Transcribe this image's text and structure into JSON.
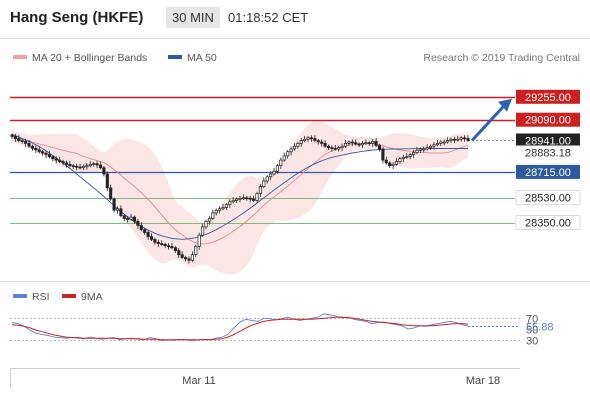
{
  "header": {
    "title": "Hang Seng (HKFE)",
    "interval": "30 MIN",
    "time": "01:18:52 CET"
  },
  "legend": {
    "items": [
      {
        "label": "MA 20 + Bollinger Bands",
        "color": "#f08080"
      },
      {
        "label": "MA 50",
        "color": "#2c5aa0"
      }
    ],
    "credit": "Research © 2019 Trading Central"
  },
  "rsi_legend": {
    "items": [
      {
        "label": "RSI",
        "color": "#5b7fd4"
      },
      {
        "label": "9MA",
        "color": "#cc2222"
      }
    ]
  },
  "colors": {
    "resistance": "#cc1f1f",
    "pivot": "#2c5aa0",
    "support": "#4caf50",
    "candle_up": "#ffffff",
    "candle_down": "#222222",
    "bollinger_fill": "#fbdede",
    "arrow": "#2c62b4"
  },
  "chart_data": [
    {
      "type": "candlestick",
      "ylim": [
        28010,
        29390
      ],
      "x_ticks": [
        "Mar 11",
        "Mar 18"
      ],
      "legend_position": "top-left",
      "levels": [
        {
          "value": 29255,
          "label": "29255.00",
          "kind": "resistance"
        },
        {
          "value": 29090,
          "label": "29090.00",
          "kind": "resistance"
        },
        {
          "value": 28941,
          "label": "28941.00",
          "kind": "last"
        },
        {
          "value": 28883.18,
          "label": "28883.18",
          "kind": "ma"
        },
        {
          "value": 28715,
          "label": "28715.00",
          "kind": "pivot"
        },
        {
          "value": 28530,
          "label": "28530.00",
          "kind": "support"
        },
        {
          "value": 28350,
          "label": "28350.00",
          "kind": "support"
        }
      ],
      "close": [
        28970,
        28955,
        28940,
        28935,
        28920,
        28900,
        28885,
        28875,
        28860,
        28850,
        28840,
        28825,
        28810,
        28800,
        28790,
        28780,
        28770,
        28760,
        28755,
        28750,
        28745,
        28755,
        28760,
        28770,
        28775,
        28765,
        28745,
        28700,
        28600,
        28520,
        28440,
        28450,
        28400,
        28380,
        28375,
        28390,
        28360,
        28330,
        28300,
        28280,
        28250,
        28230,
        28210,
        28200,
        28195,
        28185,
        28180,
        28170,
        28150,
        28120,
        28100,
        28090,
        28080,
        28120,
        28180,
        28260,
        28320,
        28360,
        28380,
        28420,
        28440,
        28450,
        28460,
        28480,
        28500,
        28510,
        28520,
        28525,
        28530,
        28525,
        28520,
        28510,
        28560,
        28610,
        28650,
        28680,
        28700,
        28720,
        28760,
        28800,
        28830,
        28860,
        28880,
        28900,
        28920,
        28940,
        28950,
        28960,
        28955,
        28940,
        28930,
        28920,
        28900,
        28890,
        28885,
        28880,
        28890,
        28900,
        28920,
        28930,
        28925,
        28915,
        28910,
        28920,
        28925,
        28920,
        28935,
        28905,
        28880,
        28800,
        28780,
        28760,
        28770,
        28790,
        28810,
        28820,
        28825,
        28840,
        28855,
        28870,
        28880,
        28880,
        28890,
        28900,
        28910,
        28920,
        28930,
        28930,
        28940,
        28950,
        28945,
        28950,
        28960,
        28955,
        28941
      ],
      "ma50": [
        28985,
        28975,
        28965,
        28955,
        28945,
        28935,
        28922,
        28910,
        28897,
        28882,
        28867,
        28850,
        28833,
        28815,
        28797,
        28778,
        28760,
        28740,
        28720,
        28700,
        28680,
        28660,
        28640,
        28620,
        28600,
        28580,
        28560,
        28538,
        28516,
        28494,
        28472,
        28450,
        28430,
        28410,
        28392,
        28374,
        28357,
        28340,
        28325,
        28310,
        28297,
        28285,
        28274,
        28264,
        28256,
        28249,
        28243,
        28238,
        28234,
        28232,
        28231,
        28232,
        28234,
        28238,
        28243,
        28249,
        28257,
        28266,
        28276,
        28288,
        28300,
        28313,
        28327,
        28341,
        28356,
        28371,
        28387,
        28403,
        28420,
        28437,
        28455,
        28473,
        28491,
        28510,
        28528,
        28547,
        28565,
        28584,
        28602,
        28620,
        28638,
        28655,
        28672,
        28689,
        28705,
        28720,
        28735,
        28749,
        28762,
        28774,
        28785,
        28795,
        28804,
        28812,
        28819,
        28825,
        28831,
        28836,
        28841,
        28846,
        28851,
        28855,
        28859,
        28863,
        28866,
        28869,
        28872,
        28874,
        28876,
        28877,
        28878,
        28879,
        28880,
        28880,
        28880,
        28881,
        28881,
        28881,
        28882,
        28882,
        28882,
        28882,
        28882,
        28883,
        28883,
        28883,
        28883,
        28883,
        28883,
        28883,
        28883,
        28883,
        28883,
        28883,
        28883.18
      ]
    },
    {
      "type": "line",
      "title": "RSI",
      "ylim": [
        0,
        100
      ],
      "y_ticks": [
        70,
        50,
        30
      ],
      "last_value_label": "55.88",
      "series": [
        {
          "name": "RSI",
          "values": [
            62,
            60,
            55,
            48,
            42,
            40,
            38,
            35,
            34,
            33,
            34,
            33,
            32,
            35,
            33,
            31,
            33,
            34,
            30,
            32,
            33,
            31,
            30,
            34,
            32,
            28,
            30,
            29,
            31,
            30,
            28,
            30,
            31,
            30,
            33,
            35,
            40,
            52,
            63,
            68,
            66,
            64,
            70,
            69,
            67,
            69,
            72,
            68,
            66,
            68,
            70,
            72,
            78,
            76,
            74,
            70,
            72,
            68,
            66,
            64,
            60,
            62,
            63,
            60,
            58,
            56,
            50,
            52,
            56,
            55,
            58,
            60,
            62,
            64,
            62,
            58,
            55.88
          ]
        },
        {
          "name": "9MA",
          "values": [
            58,
            57,
            55,
            52,
            48,
            45,
            42,
            39,
            37,
            35,
            34,
            34,
            33,
            33,
            33,
            33,
            33,
            33,
            32,
            32,
            32,
            32,
            31,
            31,
            31,
            30,
            30,
            30,
            30,
            30,
            30,
            30,
            30,
            30,
            31,
            32,
            35,
            40,
            46,
            52,
            57,
            61,
            64,
            66,
            67,
            68,
            68,
            68,
            68,
            68,
            68,
            69,
            70,
            71,
            72,
            72,
            71,
            70,
            68,
            66,
            64,
            63,
            62,
            61,
            60,
            58,
            57,
            56,
            56,
            56,
            56,
            57,
            58,
            59,
            60,
            60,
            59
          ]
        }
      ]
    }
  ]
}
